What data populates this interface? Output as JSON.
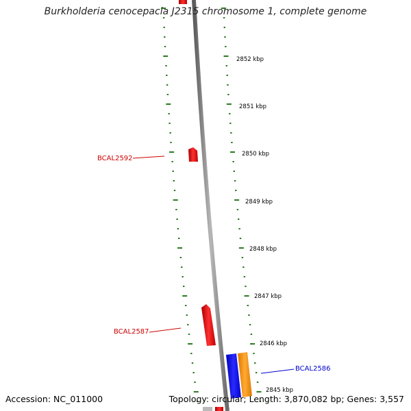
{
  "header": {
    "title": "Burkholderia cenocepacia J2315 chromosome 1, complete genome"
  },
  "footer": {
    "accession": "Accession: NC_011000",
    "summary": "Topology: circular; Length: 3,870,082 bp; Genes: 3,557"
  },
  "map": {
    "backbone_color": "#888888",
    "tick_color": "#2a7a1f",
    "scale_labels": [
      {
        "label": "2852 kbp",
        "position_kbp": 2852
      },
      {
        "label": "2851 kbp",
        "position_kbp": 2851
      },
      {
        "label": "2850 kbp",
        "position_kbp": 2850
      },
      {
        "label": "2849 kbp",
        "position_kbp": 2849
      },
      {
        "label": "2848 kbp",
        "position_kbp": 2848
      },
      {
        "label": "2847 kbp",
        "position_kbp": 2847
      },
      {
        "label": "2846 kbp",
        "position_kbp": 2846
      },
      {
        "label": "2845 kbp",
        "position_kbp": 2845
      }
    ],
    "genes": [
      {
        "name": "BCAL2592",
        "strand": "reverse",
        "color": "#dd1111",
        "label_color": "#cc0000"
      },
      {
        "name": "BCAL2587",
        "strand": "reverse",
        "color": "#dd1111",
        "label_color": "#cc0000"
      },
      {
        "name": "BCAL2586",
        "strand": "forward",
        "color": "#1111ee",
        "label_color": "#0000cc"
      },
      {
        "name": "",
        "strand": "forward",
        "color": "#ff9900",
        "label_color": ""
      }
    ]
  }
}
